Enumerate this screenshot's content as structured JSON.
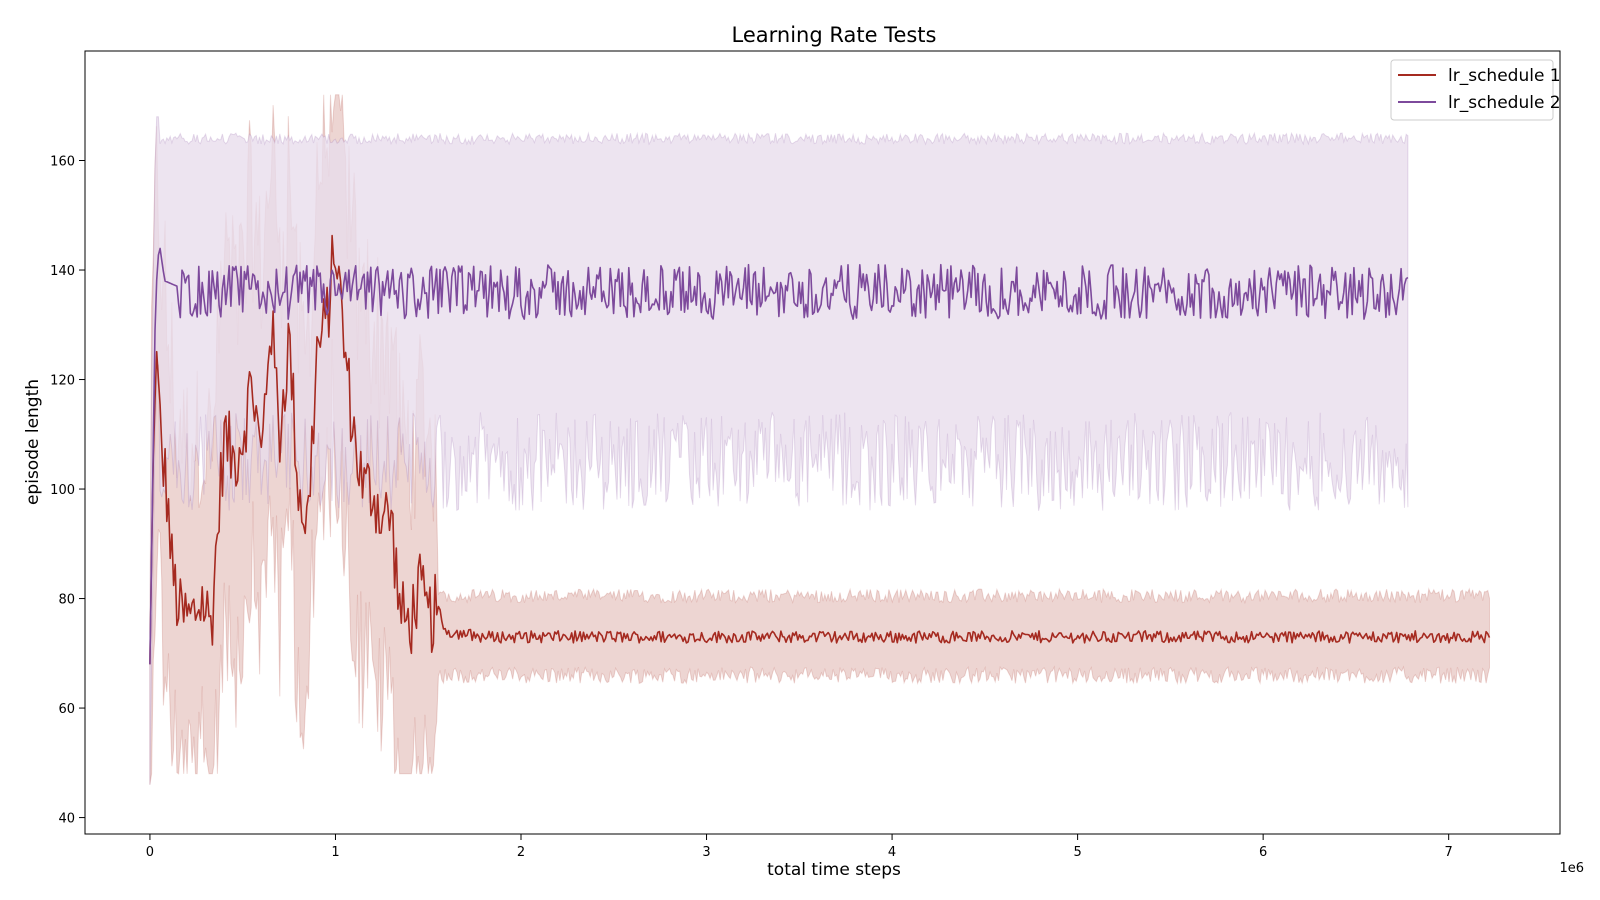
{
  "chart_data": {
    "type": "line",
    "title": "Learning Rate Tests",
    "xlabel": "total time steps",
    "ylabel": "episode length",
    "x_offset_label": "1e6",
    "xlim": [
      -0.35,
      7.6
    ],
    "ylim": [
      37,
      180
    ],
    "xticks": [
      0,
      1,
      2,
      3,
      4,
      5,
      6,
      7
    ],
    "yticks": [
      40,
      60,
      80,
      100,
      120,
      140,
      160
    ],
    "legend_position": "top-right",
    "grid": false,
    "series": [
      {
        "name": "lr_schedule 1",
        "color": "#a52a20",
        "band_color": "#e8c9c5",
        "x_end": 7.22,
        "mean_keypoints": [
          [
            0,
            68
          ],
          [
            0.03,
            126
          ],
          [
            0.06,
            108
          ],
          [
            0.09,
            100
          ],
          [
            0.12,
            85
          ],
          [
            0.16,
            77
          ],
          [
            0.22,
            76
          ],
          [
            0.28,
            80
          ],
          [
            0.33,
            75
          ],
          [
            0.4,
            110
          ],
          [
            0.45,
            105
          ],
          [
            0.5,
            110
          ],
          [
            0.55,
            120
          ],
          [
            0.6,
            105
          ],
          [
            0.65,
            132
          ],
          [
            0.7,
            110
          ],
          [
            0.75,
            128
          ],
          [
            0.8,
            100
          ],
          [
            0.85,
            93
          ],
          [
            0.9,
            125
          ],
          [
            0.95,
            130
          ],
          [
            1.0,
            145
          ],
          [
            1.05,
            125
          ],
          [
            1.1,
            110
          ],
          [
            1.15,
            100
          ],
          [
            1.2,
            100
          ],
          [
            1.25,
            95
          ],
          [
            1.3,
            95
          ],
          [
            1.35,
            77
          ],
          [
            1.4,
            75
          ],
          [
            1.45,
            82
          ],
          [
            1.5,
            76
          ],
          [
            1.55,
            78
          ],
          [
            1.6,
            74
          ],
          [
            1.8,
            73
          ],
          [
            7.22,
            73
          ]
        ],
        "mean_late": 73.2,
        "lower_late": 66,
        "upper_late": 80
      },
      {
        "name": "lr_schedule 2",
        "color": "#7d4a9c",
        "band_color": "#e8dcec",
        "x_end": 6.78,
        "mean_keypoints": [
          [
            0,
            68
          ],
          [
            0.03,
            135
          ],
          [
            0.05,
            145
          ],
          [
            0.08,
            138
          ],
          [
            0.15,
            137
          ],
          [
            6.78,
            135
          ]
        ],
        "mean_late": 136,
        "lower_late": 105,
        "upper_late": 165
      }
    ]
  }
}
